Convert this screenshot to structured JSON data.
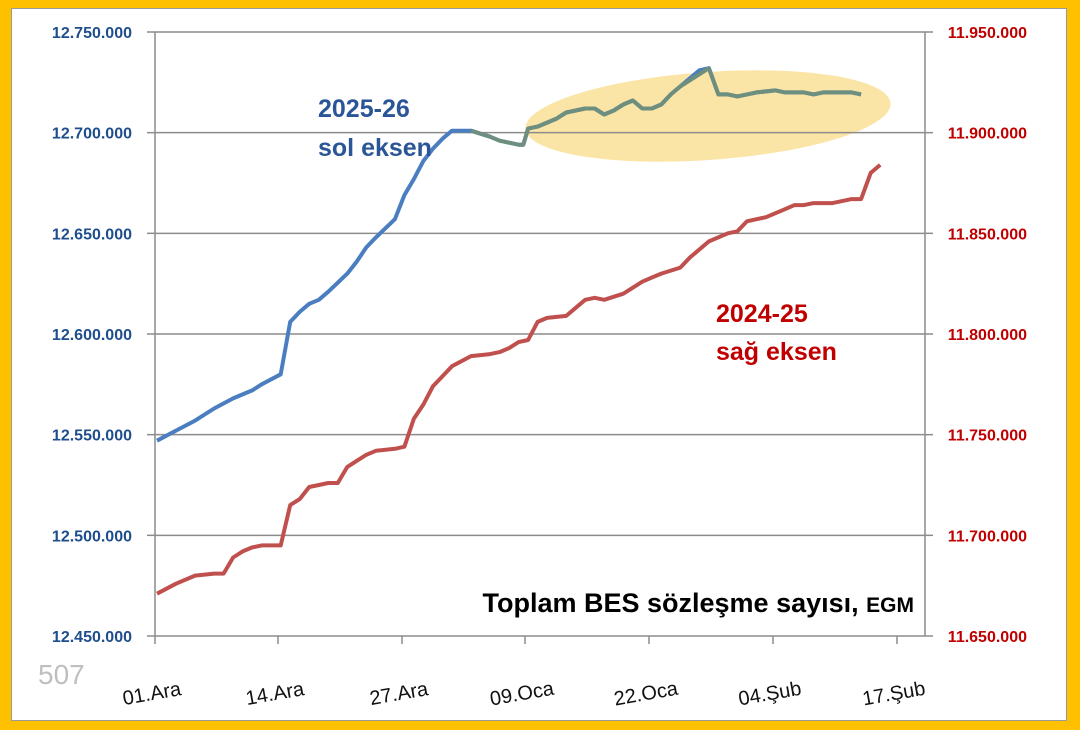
{
  "page_number": "507",
  "chart_data": {
    "type": "line",
    "title": "Toplam BES sözleşme sayısı",
    "title_source": "EGM",
    "xlabel": "",
    "ylabel_left": "",
    "ylabel_right": "",
    "x_ticks": [
      "01.Ara",
      "14.Ara",
      "27.Ara",
      "09.Oca",
      "22.Oca",
      "04.Şub",
      "17.Şub"
    ],
    "y_left": {
      "ticks": [
        "12.450.000",
        "12.500.000",
        "12.550.000",
        "12.600.000",
        "12.650.000",
        "12.700.000",
        "12.750.000"
      ],
      "ylim": [
        12450000,
        12750000
      ]
    },
    "y_right": {
      "ticks": [
        "11.650.000",
        "11.700.000",
        "11.750.000",
        "11.800.000",
        "11.850.000",
        "11.900.000",
        "11.950.000"
      ],
      "ylim": [
        11650000,
        11950000
      ]
    },
    "grid": true,
    "legend": "inline annotations",
    "annotations": [
      {
        "text_line1": "2025-26",
        "text_line2": "sol eksen",
        "color": "#2A5596"
      },
      {
        "text_line1": "2024-25",
        "text_line2": "sağ eksen",
        "color": "#C00000"
      }
    ],
    "highlight": {
      "shape": "ellipse",
      "color": "#FBE5A6",
      "region": "09.Oca – 15.Şub (2025-26 series)"
    },
    "series": [
      {
        "name": "2025-26 (sol eksen)",
        "axis": "left",
        "color": "#4A7EC0",
        "highlight_color": "#6F8F7E",
        "x_days_from_01Ara": [
          0,
          2,
          4,
          6,
          8,
          9,
          10,
          11,
          13,
          14,
          15,
          16,
          17,
          18,
          20,
          21,
          22,
          23,
          25,
          26,
          27,
          28,
          29,
          30,
          31,
          32,
          33,
          35,
          36,
          37,
          38,
          38.5,
          39,
          40,
          42,
          43,
          44,
          45,
          46,
          47,
          48,
          49,
          50,
          51,
          52,
          53,
          54,
          55,
          57,
          58,
          59,
          60,
          61,
          62,
          63,
          65,
          66,
          67,
          68,
          69,
          70,
          72,
          73,
          74
        ],
        "values": [
          12547000,
          12552000,
          12557000,
          12563000,
          12568000,
          12570000,
          12572000,
          12575000,
          12580000,
          12606000,
          12611000,
          12615000,
          12617000,
          12621000,
          12630000,
          12636000,
          12643000,
          12648000,
          12657000,
          12669000,
          12677000,
          12686000,
          12692000,
          12697000,
          12701000,
          12701000,
          12701000,
          12698000,
          12696000,
          12695000,
          12694000,
          12694000,
          12702000,
          12703000,
          12707000,
          12710000,
          12711000,
          12712000,
          12712000,
          12709000,
          12711000,
          12714000,
          12716000,
          12712000,
          12712000,
          12714000,
          12719000,
          12723000,
          12731000,
          12732000,
          12719000,
          12719000,
          12718000,
          12719000,
          12720000,
          12721000,
          12720000,
          12720000,
          12720000,
          12719000,
          12720000,
          12720000,
          12720000,
          12719000
        ]
      },
      {
        "name": "2024-25 (sağ eksen)",
        "axis": "right",
        "color": "#C0504D",
        "x_days_from_01Ara": [
          0,
          2,
          4,
          6,
          7,
          8,
          9,
          10,
          11,
          12,
          13,
          14,
          15,
          16,
          17,
          18,
          19,
          20,
          21,
          22,
          23,
          25,
          26,
          27,
          28,
          29,
          30,
          31,
          33,
          35,
          36,
          37,
          38,
          39,
          40,
          41,
          43,
          44,
          45,
          46,
          47,
          49,
          50,
          51,
          52,
          53,
          55,
          56,
          58,
          60,
          61,
          62,
          63,
          64,
          65,
          66,
          67,
          68,
          69,
          70,
          71,
          72,
          73,
          74,
          75,
          76
        ],
        "values": [
          11671000,
          11676000,
          11680000,
          11681000,
          11681000,
          11689000,
          11692000,
          11694000,
          11695000,
          11695000,
          11695000,
          11715000,
          11718000,
          11724000,
          11725000,
          11726000,
          11726000,
          11734000,
          11737000,
          11740000,
          11742000,
          11743000,
          11744000,
          11758000,
          11765000,
          11774000,
          11779000,
          11784000,
          11789000,
          11790000,
          11791000,
          11793000,
          11796000,
          11797000,
          11806000,
          11808000,
          11809000,
          11813000,
          11817000,
          11818000,
          11817000,
          11820000,
          11823000,
          11826000,
          11828000,
          11830000,
          11833000,
          11838000,
          11846000,
          11850000,
          11851000,
          11856000,
          11857000,
          11858000,
          11860000,
          11862000,
          11864000,
          11864000,
          11865000,
          11865000,
          11865000,
          11866000,
          11867000,
          11867000,
          11880000,
          11884000
        ]
      }
    ]
  }
}
